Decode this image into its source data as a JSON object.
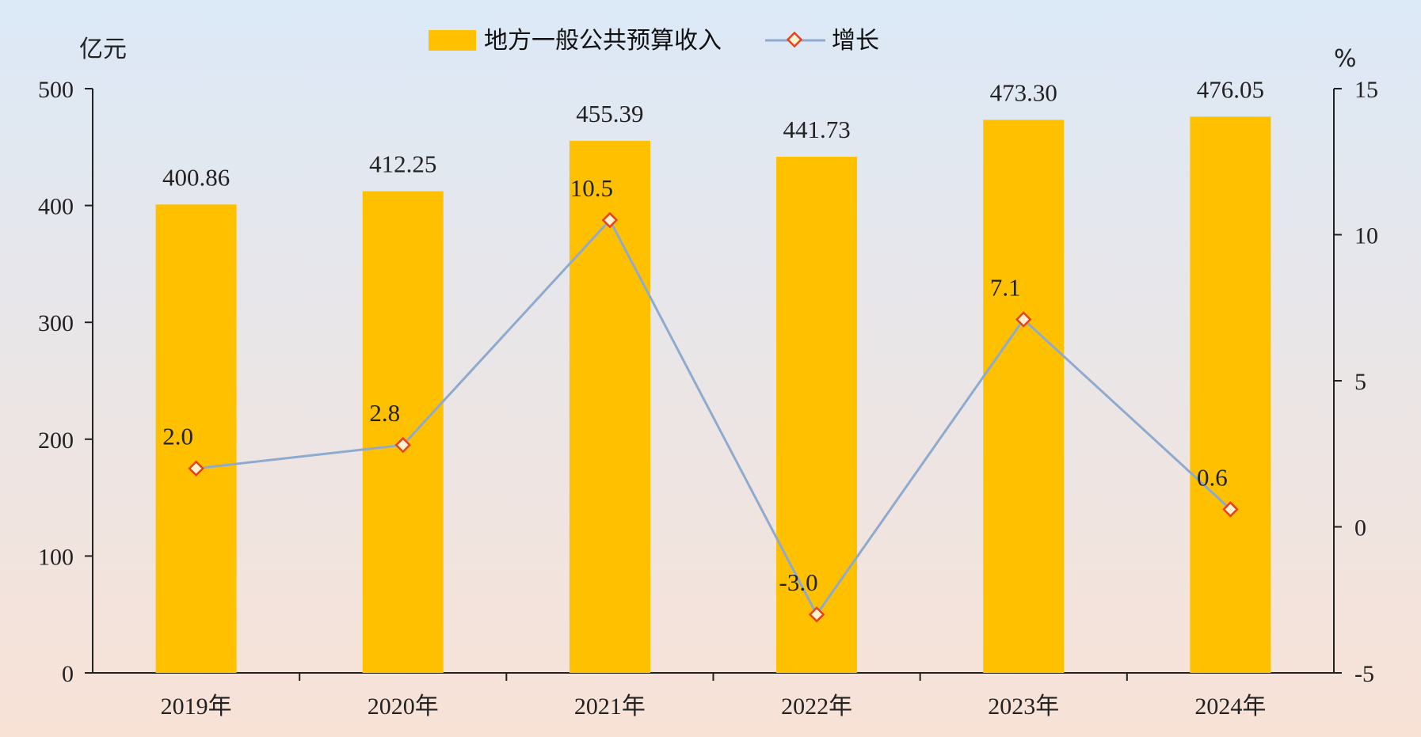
{
  "chart_data": {
    "type": "bar",
    "categories": [
      "2019年",
      "2020年",
      "2021年",
      "2022年",
      "2023年",
      "2024年"
    ],
    "series": [
      {
        "name": "地方一般公共预算收入",
        "type": "bar",
        "axis": "left",
        "values": [
          400.86,
          412.25,
          455.39,
          441.73,
          473.3,
          476.05
        ],
        "labels": [
          "400.86",
          "412.25",
          "455.39",
          "441.73",
          "473.30",
          "476.05"
        ]
      },
      {
        "name": "增长",
        "type": "line",
        "axis": "right",
        "values": [
          2.0,
          2.8,
          10.5,
          -3.0,
          7.1,
          0.6
        ],
        "labels": [
          "2.0",
          "2.8",
          "10.5",
          "-3.0",
          "7.1",
          "0.6"
        ]
      }
    ],
    "ylabel": "亿元",
    "ylim": [
      0,
      500
    ],
    "yticks": [
      "0",
      "100",
      "200",
      "300",
      "400",
      "500"
    ],
    "y2label": "%",
    "y2lim": [
      -5,
      15
    ],
    "y2ticks": [
      "-5",
      "0",
      "5",
      "10",
      "15"
    ],
    "legend_position": "top",
    "grid": false,
    "colors": {
      "bar": "#FFC000",
      "line": "#8EAACF",
      "marker_edge": "#E8401C",
      "marker_fill": "#FFF2CC",
      "axis": "#222222",
      "bg_top": "#DCE9F7",
      "bg_bottom": "#F8E2D6"
    }
  }
}
